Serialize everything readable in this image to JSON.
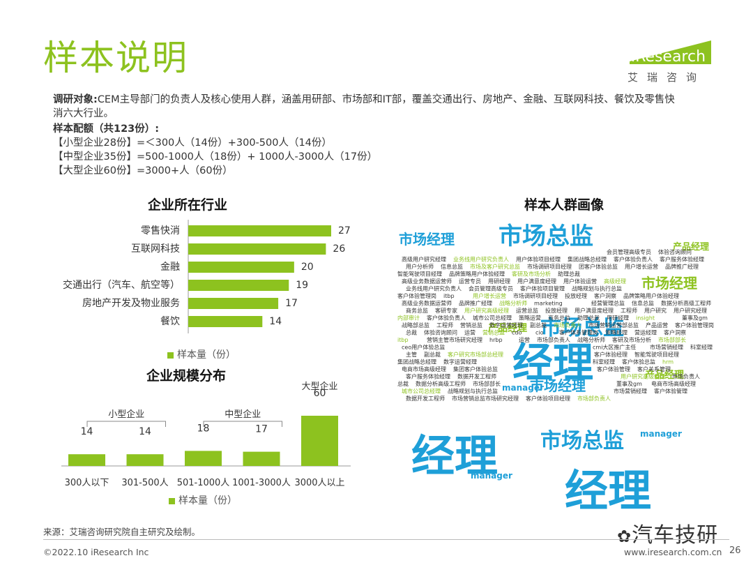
{
  "header": {
    "title": "样本说明",
    "logo_text": "iResearch",
    "logo_cn": "艾瑞咨询"
  },
  "intro": {
    "label1": "调研对象:",
    "line1": "CEM主导部门的负责人及核心使用人群，涵盖用研部、市场部和IT部，覆盖交通出行、房地产、金融、互联网科技、餐饮及零售快",
    "line1b": "消六大行业。",
    "label2": "样本配额（共123份）:",
    "lines": [
      "【小型企业28份】=＜300人（14份）+300-500人（14份）",
      "【中型企业35份】=500-1000人（18份）+ 1000人-3000人（17份）",
      "【大型企业60份】=3000+人（60份）"
    ]
  },
  "colors": {
    "accent": "#8dc21f",
    "word_blue": "#1e9fd8",
    "word_green": "#8dc21f"
  },
  "chart_data": [
    {
      "type": "bar",
      "orientation": "horizontal",
      "title": "企业所在行业",
      "categories": [
        "零售快消",
        "互联网科技",
        "金融",
        "交通出行（汽车、航空等）",
        "房地产开发及物业服务",
        "餐饮"
      ],
      "series": [
        {
          "name": "样本量（份）",
          "values": [
            27,
            26,
            20,
            19,
            17,
            14
          ]
        }
      ],
      "xlim": [
        0,
        27
      ],
      "legend": "bottom"
    },
    {
      "type": "bar",
      "title": "企业规模分布",
      "categories": [
        "300人以下",
        "301-500人",
        "501-1000人",
        "1001-3000人",
        "3000人以上"
      ],
      "series": [
        {
          "name": "样本量（份）",
          "values": [
            14,
            14,
            18,
            17,
            60
          ]
        }
      ],
      "ylim": [
        0,
        60
      ],
      "group_labels": [
        "小型企业",
        "中型企业",
        "大型企业"
      ],
      "legend": "bottom"
    }
  ],
  "wordcloud": {
    "title": "样本人群画像",
    "big": [
      {
        "text": "经理",
        "color": "blue"
      },
      {
        "text": "经理",
        "color": "blue"
      },
      {
        "text": "经理",
        "color": "blue"
      },
      {
        "text": "市场总监",
        "color": "blue"
      },
      {
        "text": "市场总监",
        "color": "blue"
      },
      {
        "text": "市场总监",
        "color": "blue"
      },
      {
        "text": "市场经理",
        "color": "blue"
      },
      {
        "text": "市场经理",
        "color": "green"
      },
      {
        "text": "市场经理",
        "color": "blue"
      },
      {
        "text": "产品经理",
        "color": "green"
      },
      {
        "text": "产品经理",
        "color": "green"
      },
      {
        "text": "产品经理",
        "color": "green"
      },
      {
        "text": "manager",
        "color": "blue"
      },
      {
        "text": "manager",
        "color": "blue"
      },
      {
        "text": "manager",
        "color": "blue"
      }
    ],
    "small": [
      "会员管理高级专员",
      "体验咨询顾问",
      "高级用户研究经理",
      "业务线用户研究负责人",
      "用户体验项目经理",
      "集团战略总经理",
      "客户体验负责人",
      "客户服务体验经理",
      "用户分析师",
      "信息总监",
      "市场及客户研究总监",
      "市场调研项目经理",
      "团客户体验总监",
      "用户增长运营",
      "品牌推广经理",
      "智能驾驶项目经理",
      "品牌策略用户体验经理",
      "客研及市场分析",
      "助理总裁",
      "高级业务数据运营师",
      "运营专员",
      "用研经理",
      "用户满意度经理",
      "用户体验运营",
      "高级经理",
      "业务线用户研究负责人",
      "会员管理高级专员",
      "客户体验项目管理",
      "战略规划与执行总监",
      "客户体验管理岗",
      "itbp",
      "用户增长运营",
      "市场调研项目经理",
      "投放经理",
      "客户洞察",
      "品牌策略用户体验经理",
      "高级业务数据运营师",
      "品牌推广经理",
      "战略分析师",
      "marketing",
      "经营管理总监",
      "信息总监",
      "数据分析高级工程师",
      "商务总监",
      "客研专家",
      "用户研究高级经理",
      "运营总监",
      "投放经理",
      "用户满意度经理",
      "工程师",
      "用户研究",
      "用户研究经理",
      "内部审计",
      "客户体验负责人",
      "城市公司总经理",
      "策略运营",
      "商务总监",
      "助理总裁",
      "用研经理",
      "insight",
      "董事及gm",
      "战略部总监",
      "工程师",
      "营销总监",
      "数字运营经理",
      "副总裁",
      "市场负责人",
      "市场营销运营部总监",
      "产品运营",
      "客户体验管理岗",
      "总裁",
      "体验咨询顾问",
      "运营",
      "营销总监",
      "cdo",
      "cio",
      "客户体系管理岗",
      "策略经理",
      "营运经理",
      "客户洞察",
      "itbp",
      "营销主管市场研究经理",
      "hrbp",
      "运营",
      "市场部负责人",
      "战略分析师",
      "客研及市场分析",
      "市场部部长",
      "ceo用户体验总监",
      "cmi大区推广主任",
      "市场营销经理",
      "科室经理",
      "主管",
      "副总裁",
      "客户研究市场部总经理",
      "客户体验经理",
      "智能驾驶项目经理",
      "集团战略总经理",
      "数字运营经理",
      "科室经理",
      "客户体验总监",
      "hrm",
      "电商市场高级经理",
      "集团客户体验总监",
      "客户体验管理",
      "客户关系管理",
      "客户服务体验经理",
      "数据开发工程师",
      "用户研究高级经理",
      "市场负责人",
      "总裁",
      "数据分析高级工程师",
      "市场部部长",
      "董事及gm",
      "电商市场高级经理",
      "城市公司总经理",
      "战略规划与执行总监",
      "市场营销经理",
      "客户体验管理",
      "数据开发工程师",
      "市场营销总监市场研究经理",
      "客户体验项目经理",
      "市场部负责人"
    ]
  },
  "footer": {
    "source": "来源：艾瑞咨询研究院自主研究及绘制。",
    "copyright": "©2022.10 iResearch Inc",
    "website": "www.iresearch.com.cn",
    "page": "26",
    "wechat": "汽车技研"
  }
}
